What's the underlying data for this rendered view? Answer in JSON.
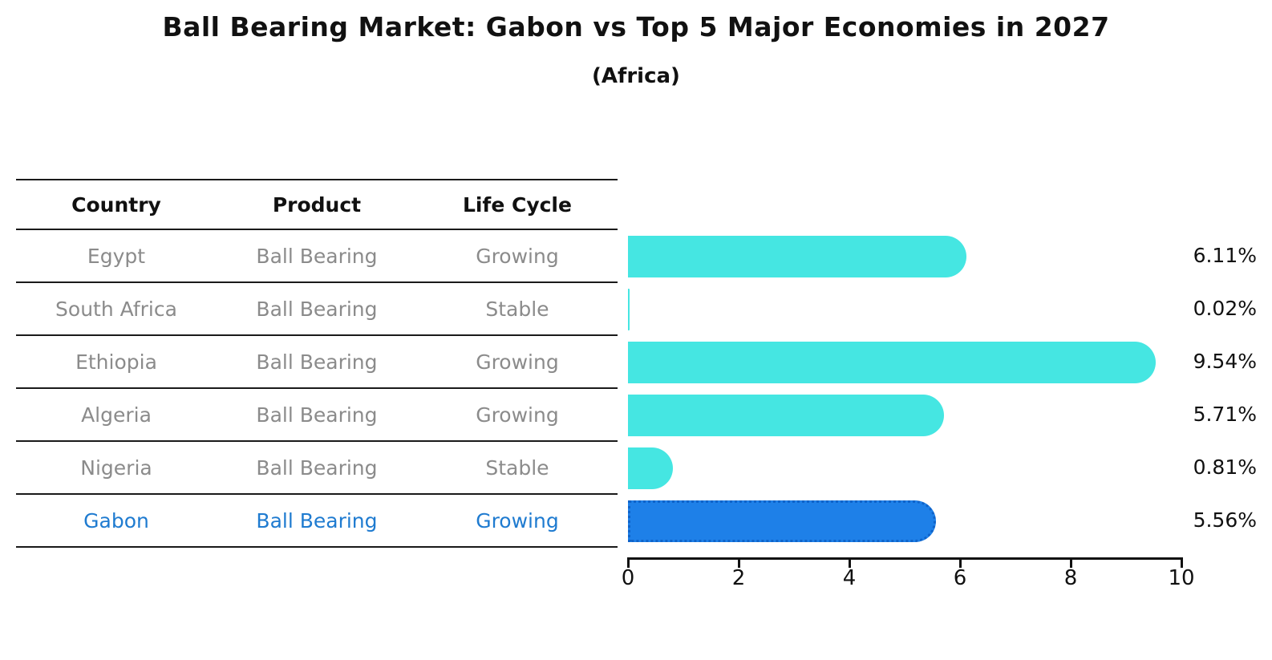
{
  "title": "Ball Bearing Market: Gabon vs Top 5 Major Economies in 2027",
  "subtitle": "(Africa)",
  "table": {
    "headers": [
      "Country",
      "Product",
      "Life Cycle"
    ]
  },
  "rows": [
    {
      "country": "Egypt",
      "product": "Ball Bearing",
      "life_cycle": "Growing",
      "value": 6.11,
      "label": "6.11%",
      "highlighted": false
    },
    {
      "country": "South Africa",
      "product": "Ball Bearing",
      "life_cycle": "Stable",
      "value": 0.02,
      "label": "0.02%",
      "highlighted": false
    },
    {
      "country": "Ethiopia",
      "product": "Ball Bearing",
      "life_cycle": "Growing",
      "value": 9.54,
      "label": "9.54%",
      "highlighted": false
    },
    {
      "country": "Algeria",
      "product": "Ball Bearing",
      "life_cycle": "Growing",
      "value": 5.71,
      "label": "5.71%",
      "highlighted": false
    },
    {
      "country": "Nigeria",
      "product": "Ball Bearing",
      "life_cycle": "Stable",
      "value": 0.81,
      "label": "0.81%",
      "highlighted": false
    },
    {
      "country": "Gabon",
      "product": "Ball Bearing",
      "life_cycle": "Growing",
      "value": 5.56,
      "label": "5.56%",
      "highlighted": true
    }
  ],
  "chart_data": {
    "type": "bar",
    "orientation": "horizontal",
    "title": "Ball Bearing Market: Gabon vs Top 5 Major Economies in 2027",
    "subtitle": "(Africa)",
    "categories": [
      "Egypt",
      "South Africa",
      "Ethiopia",
      "Algeria",
      "Nigeria",
      "Gabon"
    ],
    "values": [
      6.11,
      0.02,
      9.54,
      5.71,
      0.81,
      5.56
    ],
    "value_labels": [
      "6.11%",
      "0.02%",
      "9.54%",
      "5.71%",
      "0.81%",
      "5.56%"
    ],
    "life_cycles": [
      "Growing",
      "Stable",
      "Growing",
      "Growing",
      "Stable",
      "Growing"
    ],
    "highlight_category": "Gabon",
    "xlim": [
      0,
      10
    ],
    "x_ticks": [
      0,
      2,
      4,
      6,
      8,
      10
    ],
    "grid": false,
    "legend": false,
    "colors": {
      "bar": "#45e6e2",
      "highlight_bar": "#1e80e8",
      "highlight_bar_edge": "#0f63c9",
      "row_text": "#8b8b8b",
      "highlight_text": "#1f7bd0",
      "axis_text": "#111111"
    }
  }
}
